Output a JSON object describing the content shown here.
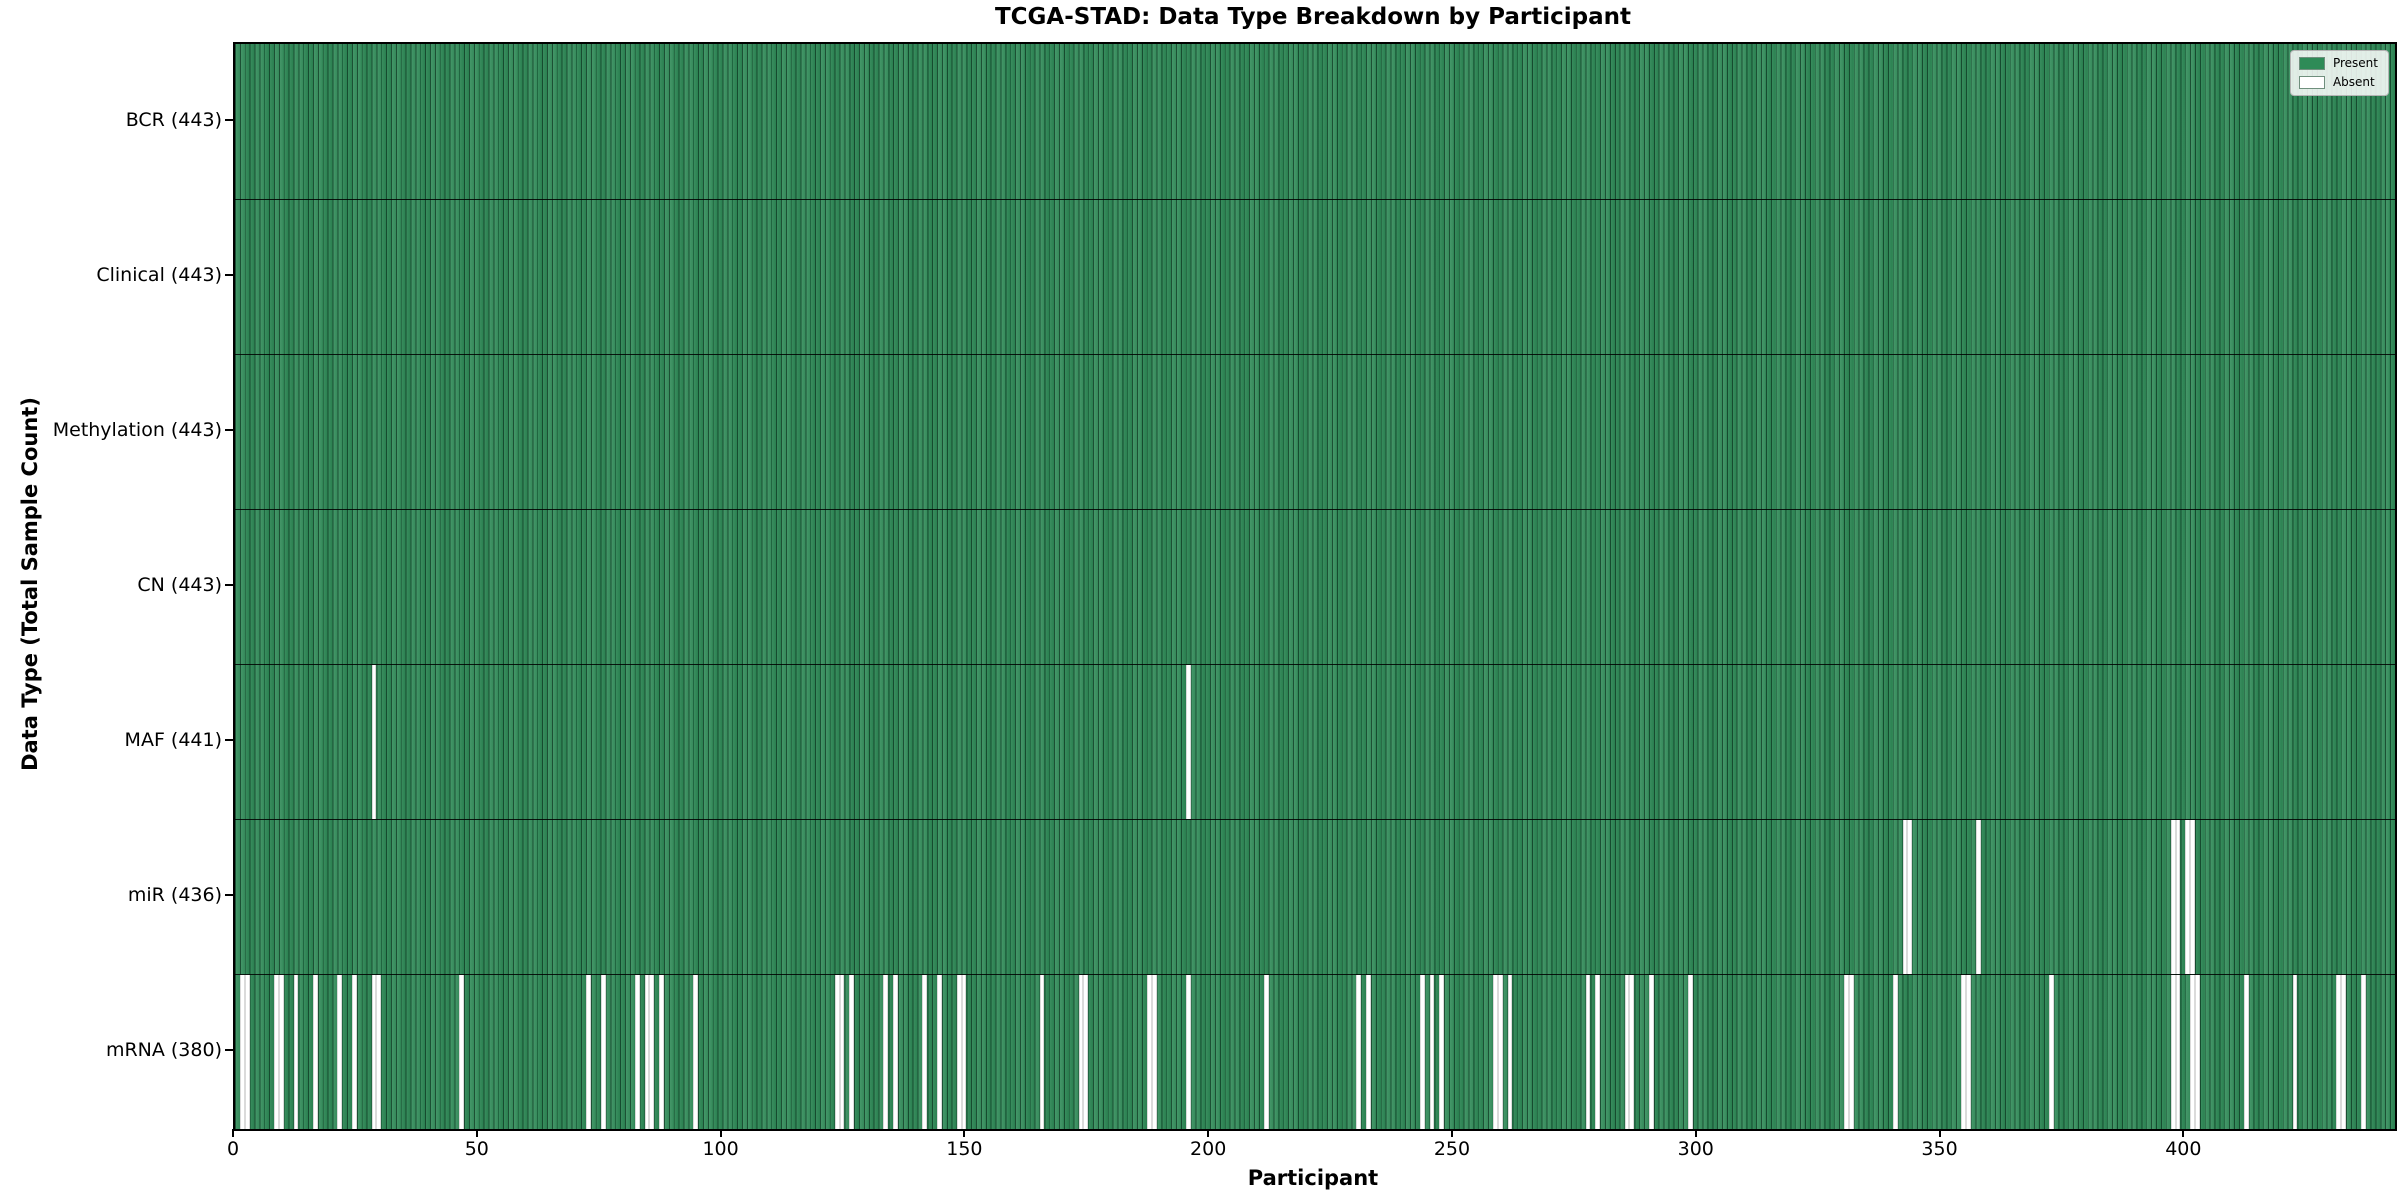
{
  "chart_data": {
    "type": "heatmap",
    "title": "TCGA-STAD: Data Type Breakdown by Participant",
    "xlabel": "Participant",
    "ylabel": "Data Type (Total Sample Count)",
    "n_participants": 443,
    "xlim": [
      0,
      443
    ],
    "x_ticks": [
      0,
      50,
      100,
      150,
      200,
      250,
      300,
      350,
      400
    ],
    "grid": false,
    "legend_position": "upper-right",
    "legend": [
      {
        "label": "Present",
        "color": "#2e8b57"
      },
      {
        "label": "Absent",
        "color": "#ffffff"
      }
    ],
    "colors": {
      "present": "#2e8b57",
      "absent": "#ffffff",
      "cell_edge": "#0a2416",
      "plot_border": "#000000",
      "background": "#ffffff"
    },
    "rows": [
      {
        "key": "bcr",
        "label": "BCR (443)",
        "total": 443,
        "absent": []
      },
      {
        "key": "clinical",
        "label": "Clinical (443)",
        "total": 443,
        "absent": []
      },
      {
        "key": "methylation",
        "label": "Methylation (443)",
        "total": 443,
        "absent": []
      },
      {
        "key": "cn",
        "label": "CN (443)",
        "total": 443,
        "absent": []
      },
      {
        "key": "maf",
        "label": "MAF (441)",
        "total": 441,
        "absent": [
          28,
          195
        ]
      },
      {
        "key": "mir",
        "label": "miR (436)",
        "total": 436,
        "absent": [
          342,
          343,
          357,
          397,
          398,
          400,
          401
        ]
      },
      {
        "key": "mrna",
        "label": "mRNA (380)",
        "total": 380,
        "absent": [
          1,
          2,
          8,
          9,
          12,
          16,
          21,
          24,
          28,
          29,
          46,
          72,
          75,
          82,
          84,
          85,
          87,
          94,
          123,
          124,
          126,
          133,
          135,
          141,
          144,
          148,
          149,
          165,
          173,
          174,
          187,
          188,
          195,
          211,
          230,
          232,
          243,
          245,
          247,
          258,
          259,
          261,
          277,
          279,
          285,
          286,
          290,
          298,
          330,
          331,
          340,
          354,
          355,
          372,
          397,
          398,
          401,
          402,
          412,
          422,
          431,
          432,
          436
        ]
      }
    ]
  }
}
